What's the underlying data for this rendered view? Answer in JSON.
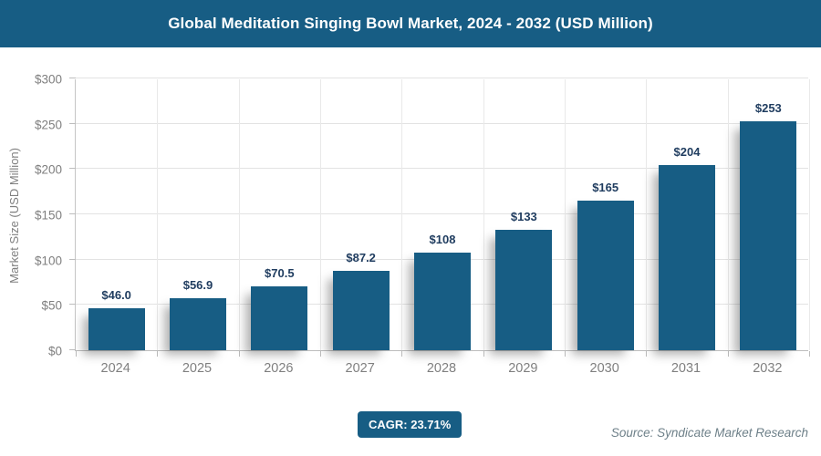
{
  "header": {
    "bg_color": "#175d84"
  },
  "chart_data": {
    "type": "bar",
    "title": "Global Meditation Singing Bowl Market, 2024 - 2032 (USD Million)",
    "categories": [
      "2024",
      "2025",
      "2026",
      "2027",
      "2028",
      "2029",
      "2030",
      "2031",
      "2032"
    ],
    "values": [
      46.0,
      56.9,
      70.5,
      87.2,
      108,
      133,
      165,
      204,
      253
    ],
    "bar_labels": [
      "$46.0",
      "$56.9",
      "$70.5",
      "$87.2",
      "$108",
      "$133",
      "$165",
      "$204",
      "$253"
    ],
    "xlabel": "",
    "ylabel": "Market Size (USD Million)",
    "ylim": [
      0,
      300
    ],
    "ytick_step": 50,
    "ytick_labels": [
      "$0",
      "$50",
      "$100",
      "$150",
      "$200",
      "$250",
      "$300"
    ],
    "grid": true,
    "legend_position": "none",
    "bar_color": "#175d84"
  },
  "footer": {
    "cagr_label": "CAGR: 23.71%",
    "source": "Source: Syndicate Market Research"
  },
  "colors": {
    "accent": "#175d84",
    "bar": "#175d84",
    "value_label": "#1f3c5f",
    "axis_text": "#7f7f7f",
    "gridline": "#e3e3e3",
    "axis_line": "#bdbdbd",
    "source_text": "#6e8089",
    "background": "#ffffff"
  }
}
